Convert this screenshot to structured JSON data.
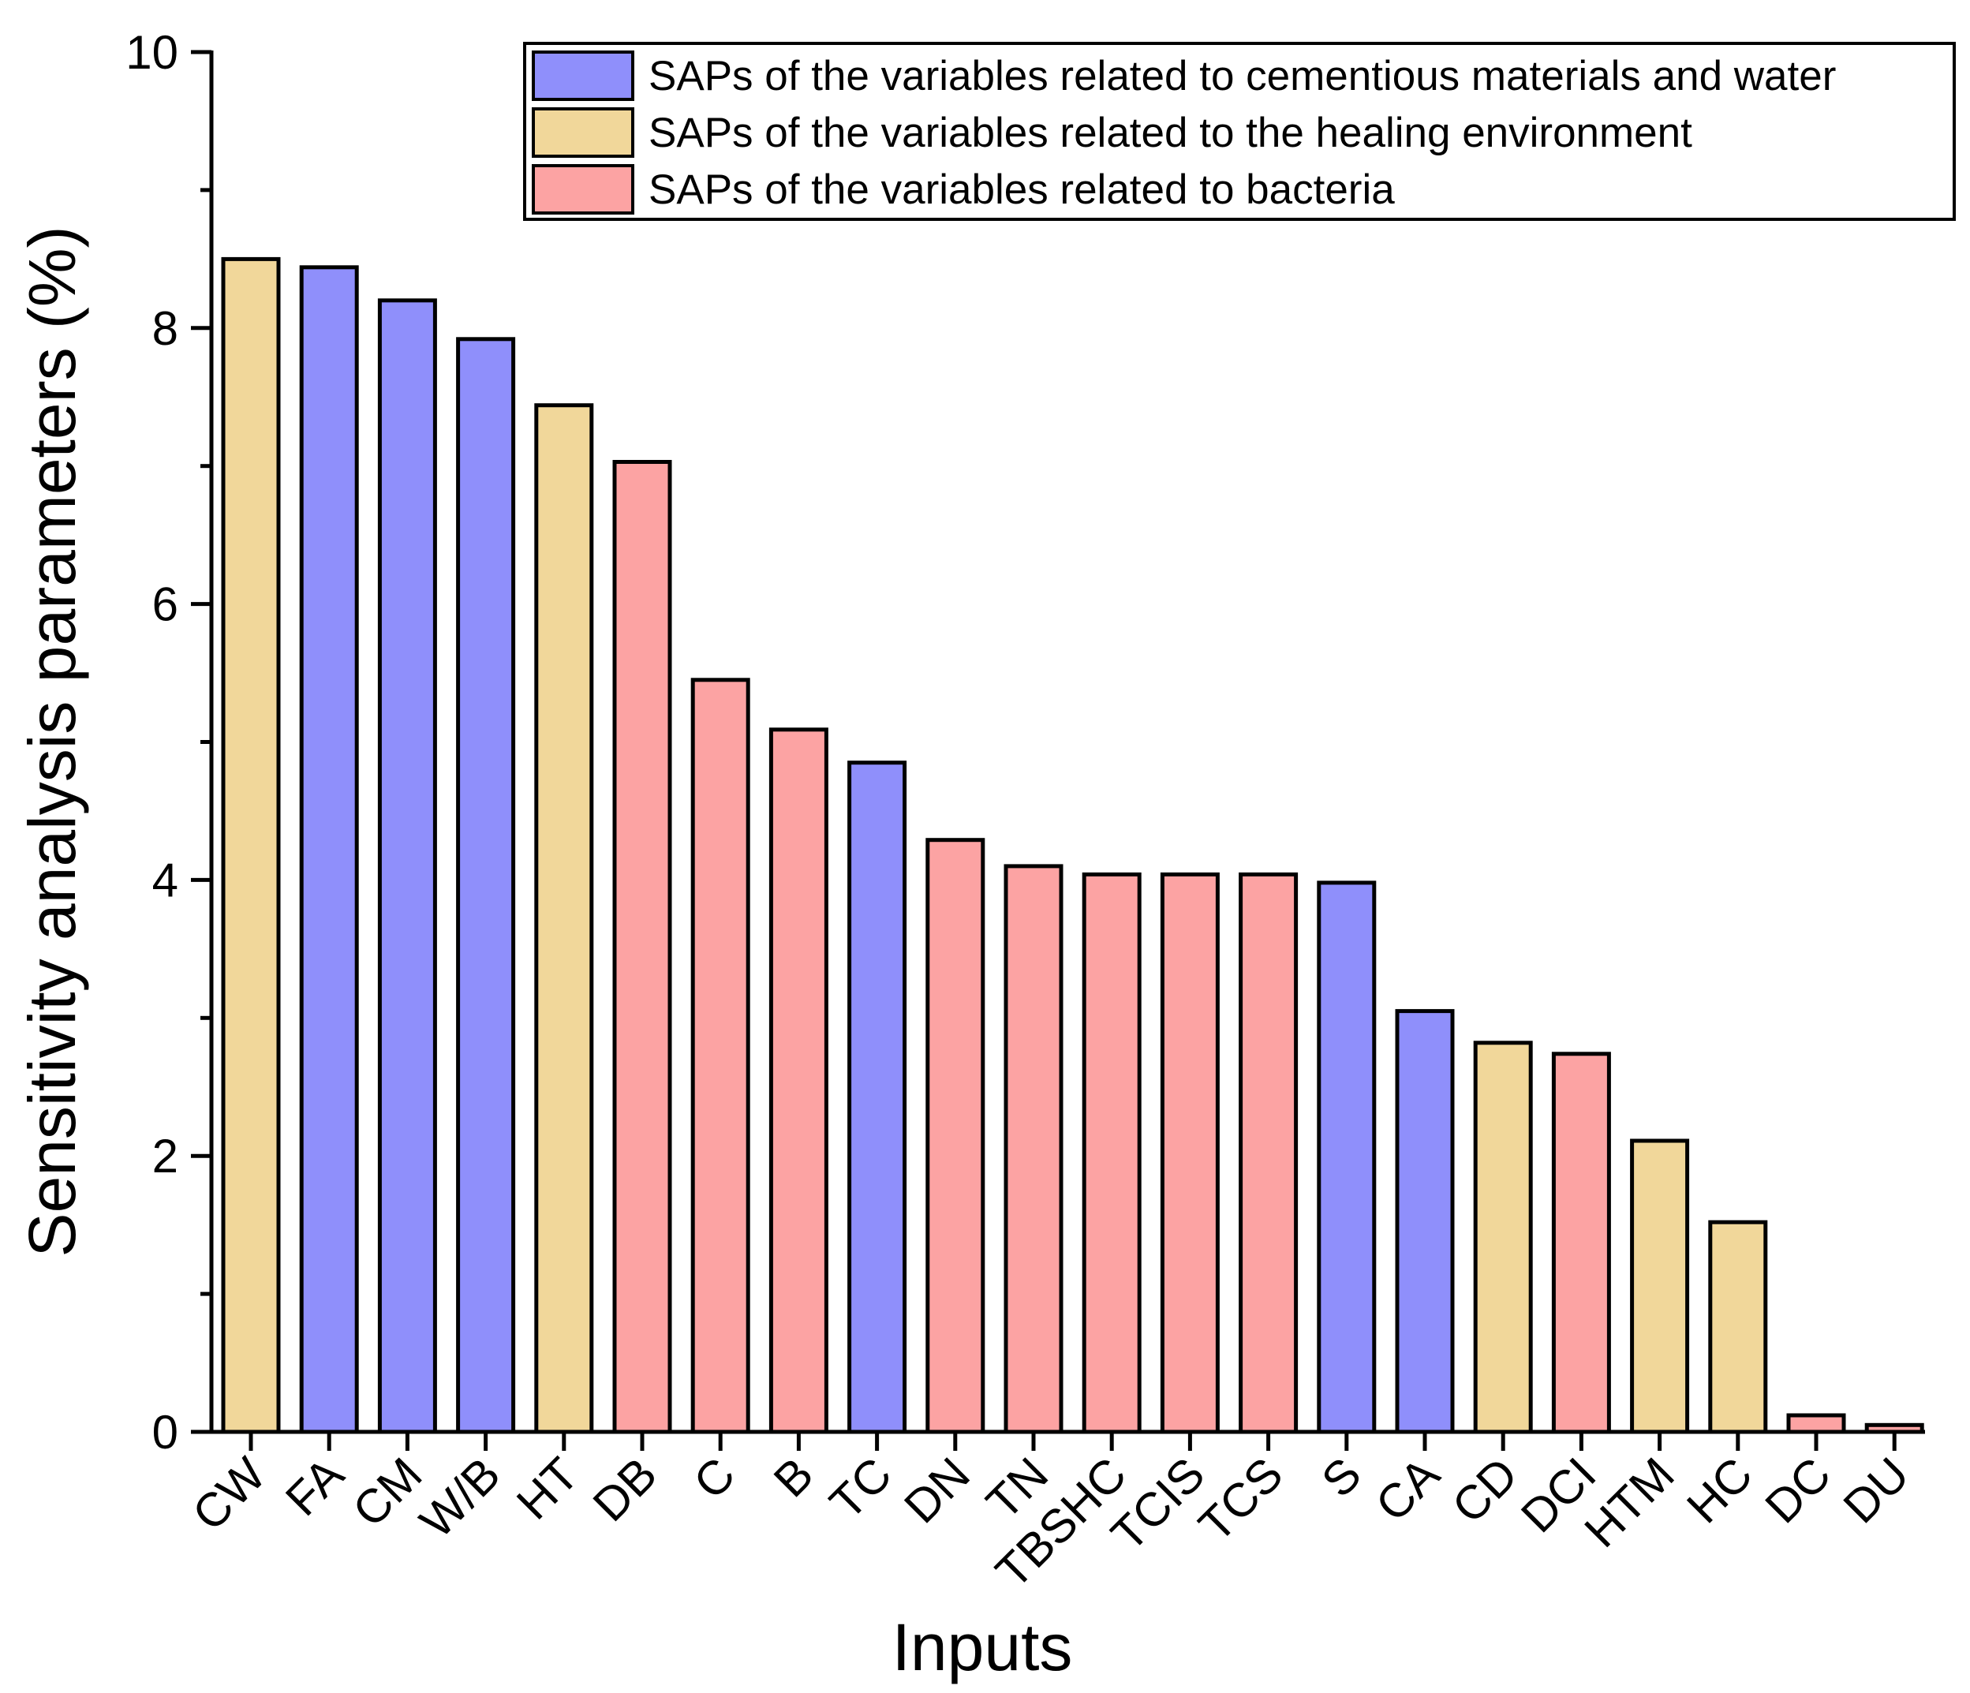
{
  "chart_data": {
    "type": "bar",
    "xlabel": "Inputs",
    "ylabel": "Sensitivity analysis parameters (%)",
    "ylim": [
      0,
      10
    ],
    "yticks_major": [
      0,
      2,
      4,
      6,
      8,
      10
    ],
    "yticks_minor": [
      1,
      3,
      5,
      7,
      9
    ],
    "ytick_labels": [
      "0",
      "2",
      "4",
      "6",
      "8",
      "10"
    ],
    "categories": [
      "CW",
      "FA",
      "CM",
      "W/B",
      "HT",
      "DB",
      "C",
      "B",
      "TC",
      "DN",
      "TN",
      "TBSHC",
      "TCIS",
      "TCS",
      "S",
      "CA",
      "CD",
      "DCI",
      "HTM",
      "HC",
      "DC",
      "DU"
    ],
    "values": [
      8.5,
      8.44,
      8.2,
      7.92,
      7.44,
      7.03,
      5.45,
      5.09,
      4.85,
      4.29,
      4.1,
      4.04,
      4.04,
      4.04,
      3.98,
      3.05,
      2.82,
      2.74,
      2.11,
      1.52,
      0.12,
      0.05
    ],
    "groups": [
      "env",
      "cem",
      "cem",
      "cem",
      "env",
      "bac",
      "bac",
      "bac",
      "cem",
      "bac",
      "bac",
      "bac",
      "bac",
      "bac",
      "cem",
      "cem",
      "env",
      "bac",
      "env",
      "env",
      "bac",
      "bac"
    ],
    "legend": [
      {
        "key": "cem",
        "label": "SAPs of the variables related to cementious materials and water",
        "color": "#8f8ffb"
      },
      {
        "key": "env",
        "label": "SAPs of the variables related to the healing environment",
        "color": "#f1d79a"
      },
      {
        "key": "bac",
        "label": "SAPs of the variables related to bacteria",
        "color": "#fca3a3"
      }
    ],
    "legend_position": "top-right"
  }
}
